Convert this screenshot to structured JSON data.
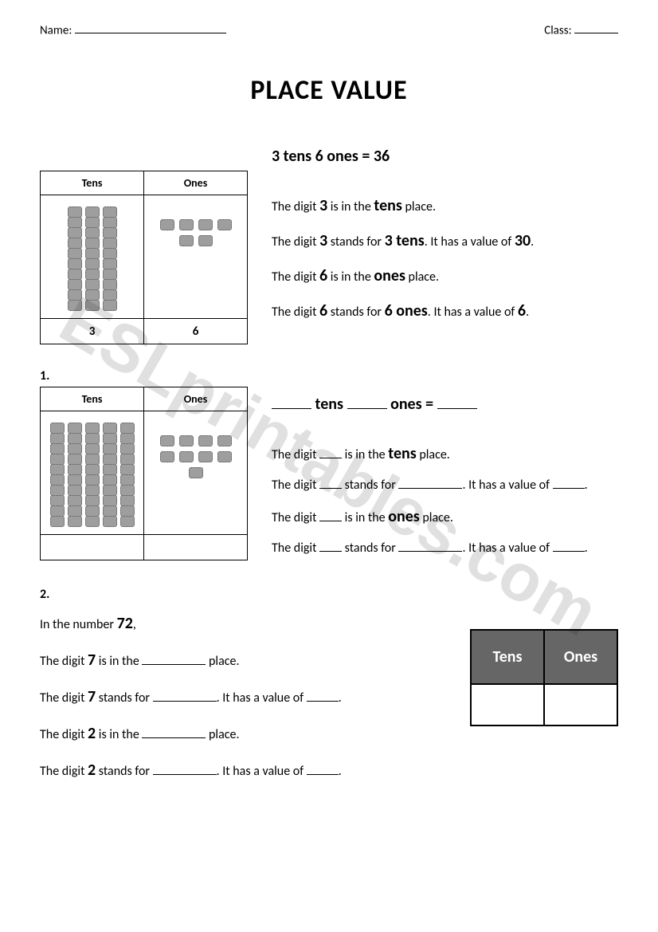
{
  "watermark": "ESLprintables.com",
  "header": {
    "name_label": "Name:",
    "class_label": "Class:"
  },
  "title": "PLACE VALUE",
  "example": {
    "tens_header": "Tens",
    "ones_header": "Ones",
    "tens_count": 3,
    "ones_count": 6,
    "tens_digit": "3",
    "ones_digit": "6",
    "equation": "3 tens 6 ones = 36",
    "l1_a": "The digit ",
    "l1_b": "3",
    "l1_c": " is in the ",
    "l1_d": "tens",
    "l1_e": " place.",
    "l2_a": "The digit ",
    "l2_b": "3",
    "l2_c": " stands for ",
    "l2_d": "3 tens",
    "l2_e": ". It has a value of ",
    "l2_f": "30",
    "l2_g": ".",
    "l3_a": "The digit ",
    "l3_b": "6",
    "l3_c": " is in the ",
    "l3_d": "ones",
    "l3_e": " place.",
    "l4_a": "The digit ",
    "l4_b": "6",
    "l4_c": " stands for ",
    "l4_d": "6 ones",
    "l4_e": ". It has a value of ",
    "l4_f": "6",
    "l4_g": ".",
    "block_color": "#9e9e9e"
  },
  "q1": {
    "num": "1.",
    "tens_header": "Tens",
    "ones_header": "Ones",
    "tens_count": 5,
    "ones_count": 9,
    "eq_a": "tens",
    "eq_b": "ones =",
    "l1_a": "The digit ",
    "l1_b": " is in the ",
    "l1_c": "tens",
    "l1_d": " place.",
    "l2_a": "The digit ",
    "l2_b": " stands for ",
    "l2_c": ". It has a value of ",
    "l2_d": ".",
    "l3_a": "The digit ",
    "l3_b": " is in the ",
    "l3_c": "ones",
    "l3_d": " place.",
    "l4_a": "The digit ",
    "l4_b": " stands for ",
    "l4_c": ". It has a value of ",
    "l4_d": "."
  },
  "q2": {
    "num": "2.",
    "intro_a": "In the number ",
    "intro_b": "72",
    "intro_c": ",",
    "l1_a": "The digit ",
    "l1_b": "7",
    "l1_c": " is in the ",
    "l1_d": " place.",
    "l2_a": "The digit ",
    "l2_b": "7",
    "l2_c": " stands for ",
    "l2_d": ". It has a value of ",
    "l2_e": ".",
    "l3_a": "The digit ",
    "l3_b": "2",
    "l3_c": " is in the ",
    "l3_d": " place.",
    "l4_a": "The digit ",
    "l4_b": "2",
    "l4_c": " stands for ",
    "l4_d": ". It has a value of ",
    "l4_e": ".",
    "mini_tens": "Tens",
    "mini_ones": "Ones"
  }
}
